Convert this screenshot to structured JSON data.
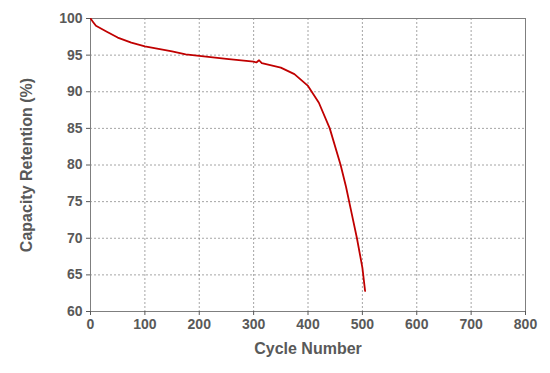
{
  "chart_data": {
    "type": "line",
    "x_label": "Cycle Number",
    "y_label": "Capacity Retention (%)",
    "x": [
      0,
      5,
      10,
      20,
      30,
      50,
      75,
      100,
      150,
      175,
      200,
      250,
      300,
      305,
      310,
      315,
      350,
      375,
      400,
      420,
      440,
      460,
      470,
      480,
      490,
      500,
      505
    ],
    "values": [
      100,
      99.5,
      99,
      98.6,
      98.2,
      97.4,
      96.7,
      96.2,
      95.5,
      95.1,
      94.9,
      94.5,
      94.1,
      94,
      94.3,
      93.9,
      93.3,
      92.4,
      90.8,
      88.5,
      85,
      80,
      77,
      73.5,
      70,
      66,
      62.8
    ],
    "color": "#c00000",
    "xlim": [
      0,
      800
    ],
    "xticks": [
      0,
      100,
      200,
      300,
      400,
      500,
      600,
      700,
      800
    ],
    "ylim": [
      60,
      100
    ],
    "yticks": [
      60,
      65,
      70,
      75,
      80,
      85,
      90,
      95,
      100
    ],
    "grid": true
  }
}
